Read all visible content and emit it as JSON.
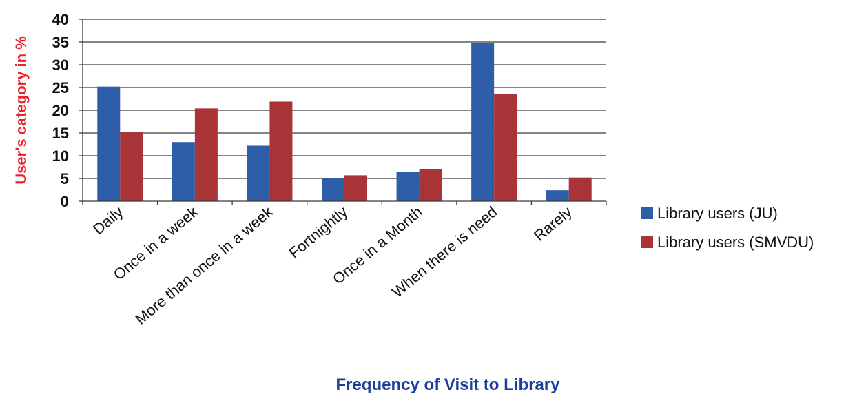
{
  "chart_data": {
    "type": "bar",
    "title": "",
    "xlabel": "Frequency of Visit to Library",
    "ylabel": "User's category in %",
    "ylim": [
      0,
      40
    ],
    "yticks": [
      0,
      5,
      10,
      15,
      20,
      25,
      30,
      35,
      40
    ],
    "grid": true,
    "legend_position": "right",
    "categories": [
      "Daily",
      "Once in a week",
      "More than once in a week",
      "Fortnightly",
      "Once in a Month",
      "When there is need",
      "Rarely"
    ],
    "series": [
      {
        "name": "Library users (JU)",
        "color": "#2f5ea8",
        "values": [
          25.2,
          13.0,
          12.2,
          5.1,
          6.5,
          34.8,
          2.4
        ]
      },
      {
        "name": "Library users (SMVDU)",
        "color": "#a83437",
        "values": [
          15.3,
          20.4,
          21.9,
          5.7,
          7.0,
          23.5,
          5.2
        ]
      }
    ]
  },
  "axis_colors": {
    "ylabel": "#e8232b",
    "xlabel": "#1a3f9a"
  }
}
